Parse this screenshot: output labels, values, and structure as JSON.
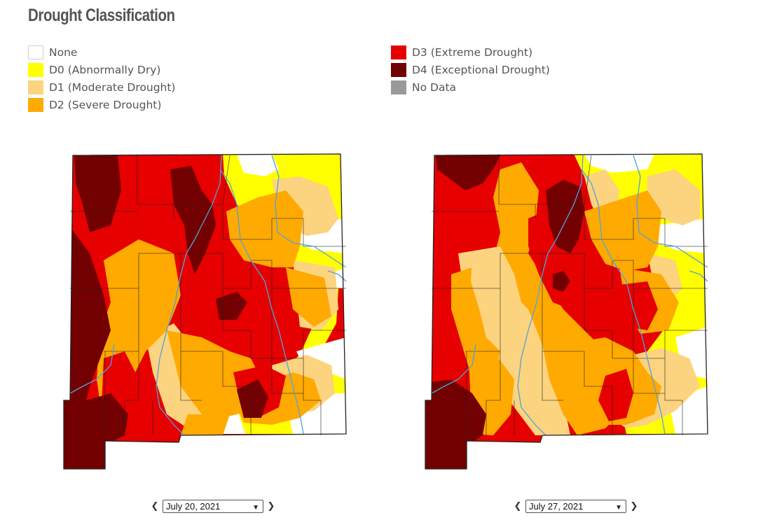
{
  "title": "Drought Classification",
  "legend": {
    "left": [
      {
        "label": "None",
        "color": "#ffffff"
      },
      {
        "label": "D0 (Abnormally Dry)",
        "color": "#ffff00"
      },
      {
        "label": "D1 (Moderate Drought)",
        "color": "#fcd37f"
      },
      {
        "label": "D2 (Severe Drought)",
        "color": "#ffaa00"
      }
    ],
    "right": [
      {
        "label": "D3 (Extreme Drought)",
        "color": "#e60000"
      },
      {
        "label": "D4 (Exceptional Drought)",
        "color": "#730000"
      },
      {
        "label": "No Data",
        "color": "#999999"
      }
    ]
  },
  "maps": [
    {
      "date": "July 20, 2021"
    },
    {
      "date": "July 27, 2021"
    }
  ],
  "nav": {
    "prev_icon": "chevron-left-icon",
    "next_icon": "chevron-right-icon"
  },
  "colors": {
    "river": "#4ea3e0",
    "county_border": "#222222"
  }
}
